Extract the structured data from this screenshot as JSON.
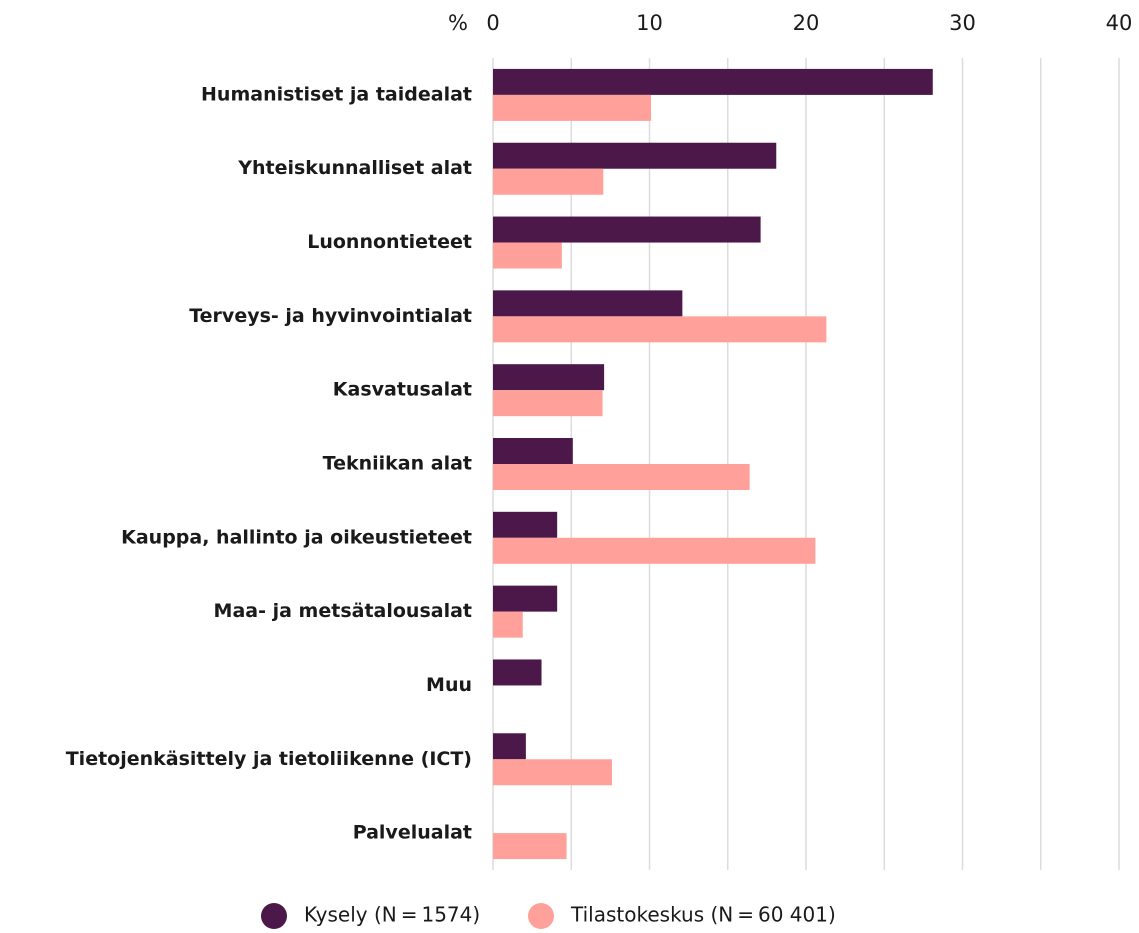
{
  "chart_data": {
    "type": "barh",
    "xlabel": "%",
    "categories": [
      "Humanistiset ja taidealat",
      "Yhteiskunnalliset alat",
      "Luonnontieteet",
      "Terveys- ja hyvinvointialat",
      "Kasvatusalat",
      "Tekniikan alat",
      "Kauppa, hallinto ja oikeustieteet",
      "Maa- ja metsätalousalat",
      "Muu",
      "Tietojenkäsittely ja tietoliikenne (ICT)",
      "Palvelualat"
    ],
    "series": [
      {
        "name": "Kysely (N = 1574)",
        "color": "#4b1849",
        "values": [
          28.1,
          18.1,
          17.1,
          12.1,
          7.1,
          5.1,
          4.1,
          4.1,
          3.1,
          2.1,
          null
        ]
      },
      {
        "name": "Tilastokeskus (N = 60 401)",
        "color": "#ffa19a",
        "values": [
          10.1,
          7.05,
          4.4,
          21.3,
          7.0,
          16.4,
          20.6,
          1.9,
          null,
          7.6,
          4.7
        ]
      }
    ],
    "xlim": [
      0,
      40
    ],
    "xticks": [
      0,
      10,
      20,
      30,
      40
    ],
    "xgrid_minor": [
      5,
      15,
      25,
      35
    ],
    "grid": true,
    "legend": "bottom"
  }
}
